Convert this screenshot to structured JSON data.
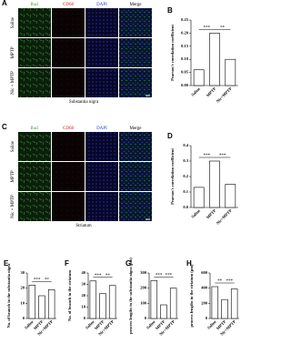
{
  "panel_a": {
    "label": "A",
    "columns": [
      "Iba1",
      "CD68",
      "DAPI",
      "Merge"
    ],
    "rows": [
      "Saline",
      "MPTP",
      "Nic + MPTP"
    ],
    "region": "Substantia nigra"
  },
  "panel_c": {
    "label": "C",
    "columns": [
      "Iba1",
      "CD68",
      "DAPI",
      "Merge"
    ],
    "rows": [
      "Saline",
      "MPTP",
      "Nic + MPTP"
    ],
    "region": "Striatum"
  },
  "chart_data": [
    {
      "type": "bar",
      "label": "B",
      "ylabel": "Pearson's correlation coefficient",
      "categories": [
        "Saline",
        "MPTP",
        "Nic+MPTP"
      ],
      "values": [
        0.06,
        0.2,
        0.1
      ],
      "ylim": [
        0,
        0.25
      ],
      "yticks": [
        {
          "value": 0,
          "label": "0.00"
        },
        {
          "value": 0.05,
          "label": "0.05"
        },
        {
          "value": 0.1,
          "label": "0.10"
        },
        {
          "value": 0.15,
          "label": "0.15"
        },
        {
          "value": 0.2,
          "label": "0.20"
        },
        {
          "value": 0.25,
          "label": "0.25"
        }
      ],
      "annotations": [
        "***",
        "**"
      ]
    },
    {
      "type": "bar",
      "label": "D",
      "ylabel": "Pearson's correlation coefficient",
      "categories": [
        "Saline",
        "MPTP",
        "Nic+MPTP"
      ],
      "values": [
        0.13,
        0.3,
        0.15
      ],
      "ylim": [
        0,
        0.4
      ],
      "yticks": [
        {
          "value": 0,
          "label": "0.0"
        },
        {
          "value": 0.1,
          "label": "0.1"
        },
        {
          "value": 0.2,
          "label": "0.2"
        },
        {
          "value": 0.3,
          "label": "0.3"
        },
        {
          "value": 0.4,
          "label": "0.4"
        }
      ],
      "annotations": [
        "***",
        "***"
      ]
    },
    {
      "type": "bar",
      "label": "E",
      "ylabel": "No. of branch in the substantia nigra",
      "categories": [
        "Saline",
        "MPTP",
        "Nic+MPTP"
      ],
      "values": [
        22,
        15,
        19
      ],
      "ylim": [
        0,
        30
      ],
      "yticks": [
        0,
        10,
        20,
        30
      ],
      "annotations": [
        "***",
        "**"
      ]
    },
    {
      "type": "bar",
      "label": "F",
      "ylabel": "No. of branch in the striatum",
      "categories": [
        "Saline",
        "MPTP",
        "Nic+MPTP"
      ],
      "values": [
        33,
        22,
        29
      ],
      "ylim": [
        0,
        40
      ],
      "yticks": [
        0,
        10,
        20,
        30,
        40
      ],
      "annotations": [
        "***",
        "**"
      ]
    },
    {
      "type": "bar",
      "label": "G",
      "ylabel": "process lengths in the substantia nigra (μm)",
      "categories": [
        "Saline",
        "MPTP",
        "Nic+MPTP"
      ],
      "values": [
        250,
        90,
        200
      ],
      "ylim": [
        0,
        300
      ],
      "yticks": [
        0,
        100,
        200,
        300
      ],
      "annotations": [
        "***",
        "***"
      ]
    },
    {
      "type": "bar",
      "label": "H",
      "ylabel": "process lengths in the striatum (μm)",
      "categories": [
        "Saline",
        "MPTP",
        "Nic+MPTP"
      ],
      "values": [
        420,
        250,
        390
      ],
      "ylim": [
        0,
        600
      ],
      "yticks": [
        0,
        200,
        400,
        600
      ],
      "annotations": [
        "**",
        "***"
      ]
    }
  ]
}
